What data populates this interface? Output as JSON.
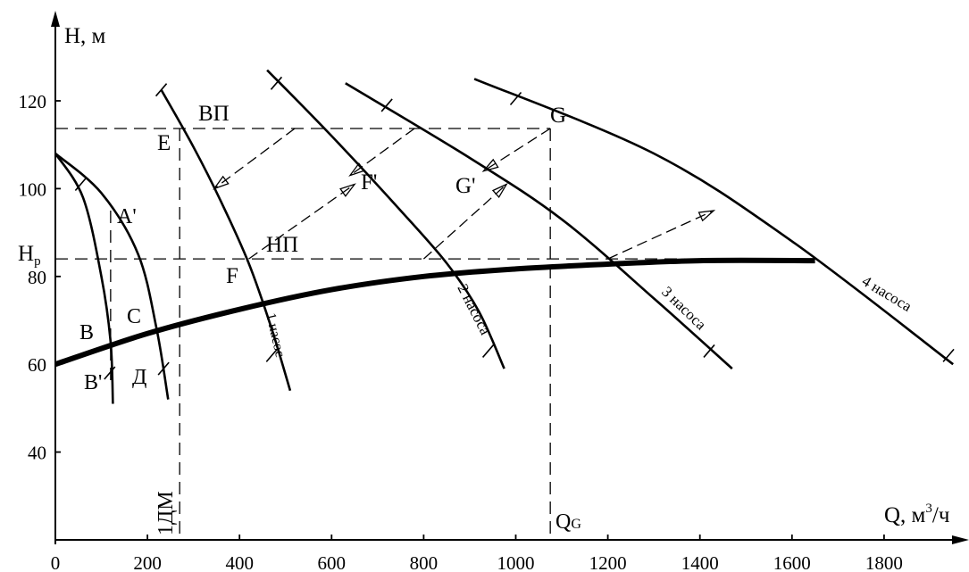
{
  "chart_data": {
    "type": "line",
    "axes": {
      "y_label": "H, м",
      "x_label_prefix": "Q, м",
      "x_label_sup": "3",
      "x_label_suffix": "/ч",
      "xlim": [
        0,
        1950
      ],
      "ylim": [
        20,
        136
      ],
      "x_ticks": [
        0,
        200,
        400,
        600,
        800,
        1000,
        1200,
        1400,
        1600,
        1800
      ],
      "y_ticks": [
        40,
        60,
        80,
        100,
        120
      ]
    },
    "series": [
      {
        "name": "1 насос",
        "points": [
          [
            230,
            122.5
          ],
          [
            300,
            109.5
          ],
          [
            360,
            97
          ],
          [
            420,
            83
          ],
          [
            470,
            68
          ],
          [
            510,
            54
          ]
        ]
      },
      {
        "name": "2 насоса",
        "points": [
          [
            460,
            127
          ],
          [
            600,
            112
          ],
          [
            750,
            95
          ],
          [
            850,
            83
          ],
          [
            920,
            72
          ],
          [
            975,
            59
          ]
        ]
      },
      {
        "name": "3 насоса",
        "points": [
          [
            630,
            124
          ],
          [
            900,
            107
          ],
          [
            1100,
            93
          ],
          [
            1300,
            75
          ],
          [
            1470,
            59
          ]
        ]
      },
      {
        "name": "4 насоса",
        "points": [
          [
            910,
            125
          ],
          [
            1300,
            108
          ],
          [
            1600,
            88
          ],
          [
            1950,
            60
          ]
        ]
      },
      {
        "name": "",
        "points": [
          [
            0,
            108
          ],
          [
            60,
            98
          ],
          [
            100,
            80
          ],
          [
            120,
            65
          ],
          [
            125,
            51
          ]
        ]
      },
      {
        "name": "",
        "points": [
          [
            0,
            108
          ],
          [
            100,
            99
          ],
          [
            180,
            85
          ],
          [
            220,
            68
          ],
          [
            245,
            52
          ]
        ]
      }
    ],
    "system_curve": [
      [
        0,
        60
      ],
      [
        200,
        67
      ],
      [
        400,
        72.5
      ],
      [
        600,
        77
      ],
      [
        800,
        80
      ],
      [
        1000,
        81.7
      ],
      [
        1200,
        82.8
      ],
      [
        1400,
        83.6
      ],
      [
        1650,
        83.6
      ]
    ],
    "reference_lines": {
      "h_upper": 113.7,
      "h_lower": 84,
      "x_1dm": 270,
      "x_qg": 1075,
      "h_p_label": "Hp"
    },
    "annotations": {
      "vp": "ВП",
      "np": "НП",
      "g": "G",
      "e": "E",
      "f": "F",
      "f_prime": "F'",
      "g_prime": "G'",
      "a_prime": "A'",
      "b": "B",
      "b_prime": "B'",
      "c": "C",
      "d": "Д",
      "one_dm": "1ДМ",
      "qg": "QG"
    }
  }
}
